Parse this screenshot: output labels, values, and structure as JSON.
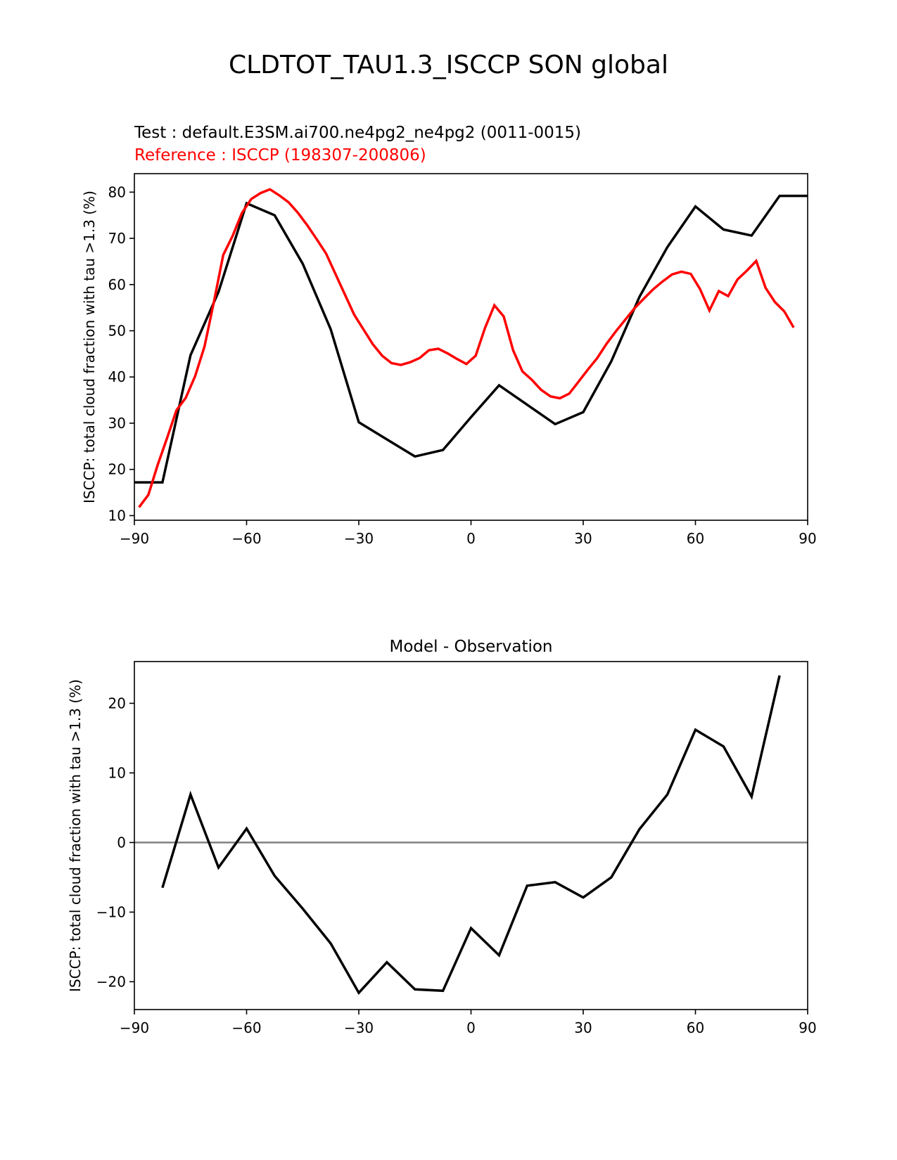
{
  "figure": {
    "suptitle": "CLDTOT_TAU1.3_ISCCP SON global",
    "test_label": "Test : default.E3SM.ai700.ne4pg2_ne4pg2 (0011-0015)",
    "reference_label": "Reference : ISCCP (198307-200806)"
  },
  "colors": {
    "test": "#000000",
    "reference": "#ff0000",
    "zero_line": "#808080"
  },
  "chart_data": [
    {
      "type": "line",
      "title": "",
      "xlabel": "",
      "ylabel": "ISCCP: total cloud fraction with tau >1.3 (%)",
      "xlim": [
        -90,
        90
      ],
      "ylim": [
        9,
        84
      ],
      "xticks": [
        -90,
        -60,
        -30,
        0,
        30,
        60,
        90
      ],
      "xtick_labels": [
        "−90",
        "−60",
        "−30",
        "0",
        "30",
        "60",
        "90"
      ],
      "yticks": [
        10,
        20,
        30,
        40,
        50,
        60,
        70,
        80
      ],
      "series": [
        {
          "name": "Test",
          "color": "#000000",
          "x": [
            -90,
            -82.5,
            -75,
            -67.5,
            -60,
            -52.5,
            -45,
            -37.5,
            -30,
            -22.5,
            -15,
            -7.5,
            0,
            7.5,
            15,
            22.5,
            30,
            37.5,
            45,
            52.5,
            60,
            67.5,
            75,
            82.5,
            90
          ],
          "y": [
            17.2,
            17.2,
            44.7,
            58.4,
            77.6,
            75.0,
            64.5,
            50.3,
            30.2,
            26.5,
            22.8,
            24.2,
            31.3,
            38.2,
            34.0,
            29.8,
            32.4,
            43.4,
            57.3,
            68.1,
            76.9,
            71.9,
            70.6,
            79.2,
            79.2
          ]
        },
        {
          "name": "Reference",
          "color": "#ff0000",
          "x": [
            -88.75,
            -86.25,
            -83.75,
            -81.25,
            -78.75,
            -76.25,
            -73.75,
            -71.25,
            -68.75,
            -66.25,
            -63.75,
            -61.25,
            -58.75,
            -56.25,
            -53.75,
            -51.25,
            -48.75,
            -46.25,
            -43.75,
            -41.25,
            -38.75,
            -36.25,
            -33.75,
            -31.25,
            -28.75,
            -26.25,
            -23.75,
            -21.25,
            -18.75,
            -16.25,
            -13.75,
            -11.25,
            -8.75,
            -6.25,
            -3.75,
            -1.25,
            1.25,
            3.75,
            6.25,
            8.75,
            11.25,
            13.75,
            16.25,
            18.75,
            21.25,
            23.75,
            26.25,
            28.75,
            31.25,
            33.75,
            36.25,
            38.75,
            41.25,
            43.75,
            46.25,
            48.75,
            51.25,
            53.75,
            56.25,
            58.75,
            61.25,
            63.75,
            66.25,
            68.75,
            71.25,
            73.75,
            76.25,
            78.75,
            81.25,
            83.75,
            86.25
          ],
          "y": [
            11.8,
            14.5,
            21.0,
            26.8,
            32.8,
            35.5,
            40.2,
            46.6,
            56.2,
            66.4,
            70.5,
            75.5,
            78.5,
            79.8,
            80.6,
            79.3,
            77.8,
            75.5,
            72.8,
            69.8,
            66.7,
            62.3,
            57.9,
            53.5,
            50.3,
            47.1,
            44.6,
            43.0,
            42.6,
            43.2,
            44.1,
            45.8,
            46.1,
            45.1,
            43.9,
            42.8,
            44.6,
            50.6,
            55.5,
            53.1,
            45.8,
            41.2,
            39.4,
            37.2,
            35.8,
            35.4,
            36.4,
            39.0,
            41.6,
            44.1,
            47.2,
            49.9,
            52.4,
            54.9,
            57.0,
            59.0,
            60.7,
            62.2,
            62.8,
            62.3,
            59.0,
            54.4,
            58.6,
            57.5,
            61.1,
            63.0,
            65.1,
            59.3,
            56.2,
            54.2,
            50.7
          ]
        }
      ]
    },
    {
      "type": "line",
      "title": "Model - Observation",
      "xlabel": "",
      "ylabel": "ISCCP: total cloud fraction with tau >1.3 (%)",
      "xlim": [
        -90,
        90
      ],
      "ylim": [
        -24,
        26
      ],
      "xticks": [
        -90,
        -60,
        -30,
        0,
        30,
        60,
        90
      ],
      "xtick_labels": [
        "−90",
        "−60",
        "−30",
        "0",
        "30",
        "60",
        "90"
      ],
      "yticks": [
        -20,
        -10,
        0,
        10,
        20
      ],
      "ytick_labels": [
        "−20",
        "−10",
        "0",
        "10",
        "20"
      ],
      "zero_line": true,
      "series": [
        {
          "color": "#000000",
          "x": [
            -82.5,
            -75,
            -67.5,
            -60,
            -52.5,
            -45,
            -37.5,
            -30,
            -22.5,
            -15,
            -7.5,
            0,
            7.5,
            15,
            22.5,
            30,
            37.5,
            45,
            52.5,
            60,
            67.5,
            75,
            82.5
          ],
          "y": [
            -6.5,
            6.9,
            -3.6,
            2.0,
            -4.8,
            -9.5,
            -14.5,
            -21.6,
            -17.2,
            -21.1,
            -21.3,
            -12.3,
            -16.2,
            -6.2,
            -5.7,
            -7.9,
            -5.0,
            1.9,
            6.9,
            16.2,
            13.8,
            6.6,
            24.0
          ]
        }
      ]
    }
  ]
}
